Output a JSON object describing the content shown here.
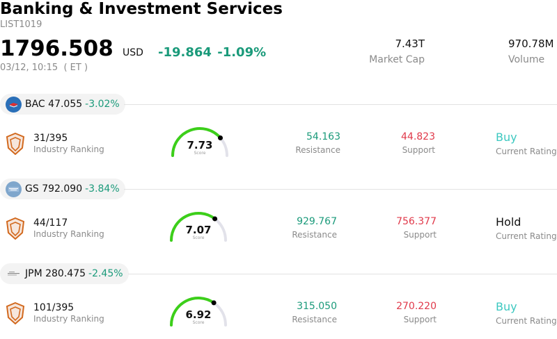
{
  "header": {
    "title": "Banking & Investment Services",
    "code": "LIST1019",
    "price": "1796.508",
    "currency": "USD",
    "change": "-19.864",
    "change_pct": "-1.09%",
    "timestamp": "03/12, 10:15  ( ET )",
    "market_cap_value": "7.43T",
    "market_cap_label": "Market Cap",
    "volume_value": "970.78M",
    "volume_label": "Volume"
  },
  "colors": {
    "positive": "#1a9a7a",
    "negative": "#e0394a",
    "buy": "#3cc8c0",
    "gauge_fill": "#3ccf1a",
    "gauge_track": "#e2e2ea"
  },
  "stocks": [
    {
      "ticker": "BAC",
      "price": "47.055",
      "change_pct": "-3.02%",
      "logo_icon": "bank-of-america-logo-icon",
      "rank": "31/395",
      "rank_label": "Industry Ranking",
      "score": "7.73",
      "score_label": "Score",
      "score_fraction": 0.773,
      "resistance": "54.163",
      "resistance_label": "Resistance",
      "support": "44.823",
      "support_label": "Support",
      "rating": "Buy",
      "rating_label": "Current Rating",
      "rating_color": "#3cc8c0"
    },
    {
      "ticker": "GS",
      "price": "792.090",
      "change_pct": "-3.84%",
      "logo_icon": "goldman-sachs-logo-icon",
      "rank": "44/117",
      "rank_label": "Industry Ranking",
      "score": "7.07",
      "score_label": "Score",
      "score_fraction": 0.707,
      "resistance": "929.767",
      "resistance_label": "Resistance",
      "support": "756.377",
      "support_label": "Support",
      "rating": "Hold",
      "rating_label": "Current Rating",
      "rating_color": "#111111"
    },
    {
      "ticker": "JPM",
      "price": "280.475",
      "change_pct": "-2.45%",
      "logo_icon": "jpmorgan-logo-icon",
      "rank": "101/395",
      "rank_label": "Industry Ranking",
      "score": "6.92",
      "score_label": "Score",
      "score_fraction": 0.692,
      "resistance": "315.050",
      "resistance_label": "Resistance",
      "support": "270.220",
      "support_label": "Support",
      "rating": "Buy",
      "rating_label": "Current Rating",
      "rating_color": "#3cc8c0"
    }
  ]
}
